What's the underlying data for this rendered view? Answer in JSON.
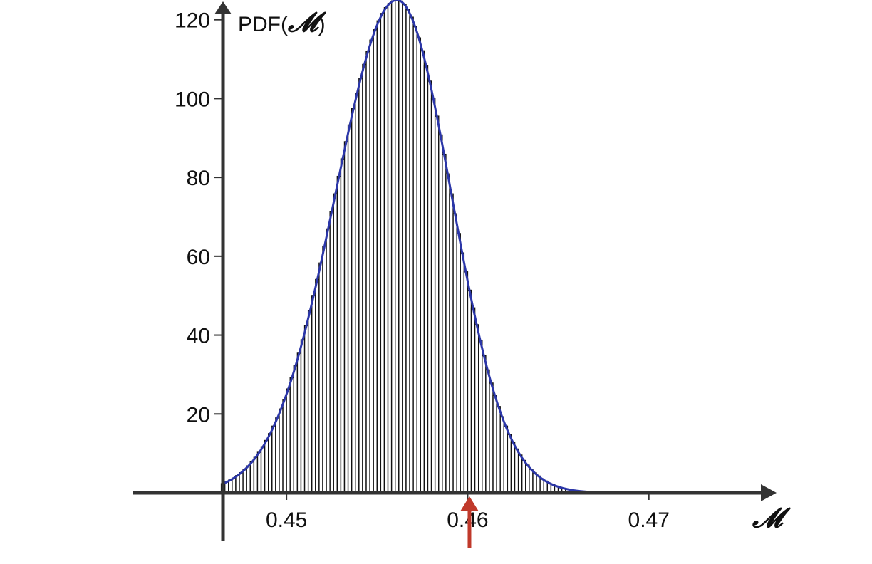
{
  "chart_data": {
    "type": "bar",
    "subtype": "histogram-with-fitted-curve",
    "title": "",
    "xlabel": "𝓜",
    "ylabel_prefix": "PDF(",
    "ylabel_symbol": "𝓜",
    "ylabel_suffix": ")",
    "xlim": [
      0.4415,
      0.4765
    ],
    "ylim": [
      0,
      125
    ],
    "x_ticks": [
      {
        "value": 0.45,
        "label": "0.45"
      },
      {
        "value": 0.46,
        "label": "0.46"
      },
      {
        "value": 0.47,
        "label": "0.47"
      }
    ],
    "y_ticks": [
      {
        "value": 20,
        "label": "20"
      },
      {
        "value": 40,
        "label": "40"
      },
      {
        "value": 60,
        "label": "60"
      },
      {
        "value": 80,
        "label": "80"
      },
      {
        "value": 100,
        "label": "100"
      },
      {
        "value": 120,
        "label": "120"
      }
    ],
    "histogram": {
      "bin_start": 0.4464,
      "bin_width": 0.0002,
      "bin_count": 104,
      "mode": 0.4561,
      "peak_density": 125,
      "std_left": 0.0034,
      "std_right": 0.003
    },
    "fit_curve": {
      "name": "",
      "mode": 0.4561,
      "peak_density": 125,
      "std_left": 0.0034,
      "std_right": 0.003,
      "x_from": 0.4465,
      "x_to": 0.469
    },
    "marker": {
      "type": "arrow",
      "x": 0.4601,
      "direction": "up"
    },
    "grid": false,
    "legend": "none",
    "colors": {
      "axis": "#333333",
      "bars_fill": "#ffffff",
      "bars_stroke": "#111111",
      "curve": "#2b36a8",
      "marker": "#c0392b"
    }
  }
}
